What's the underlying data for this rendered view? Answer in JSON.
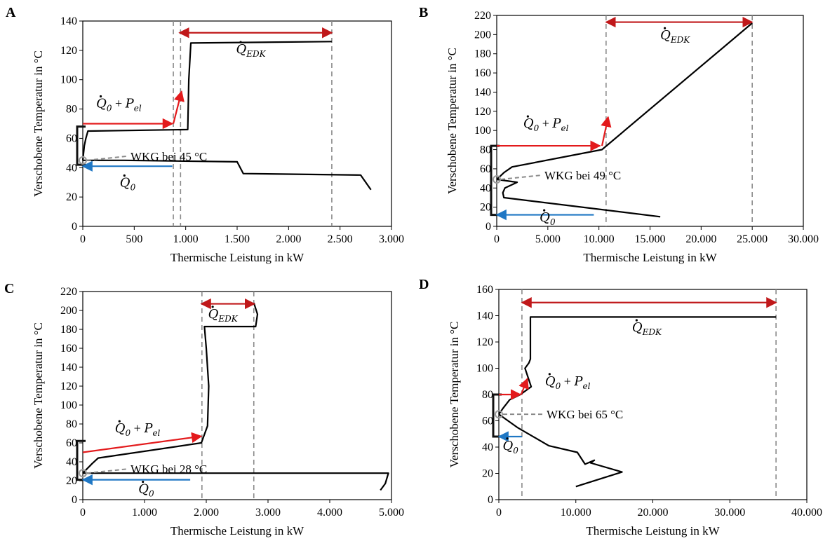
{
  "figure": {
    "colors": {
      "curve": "#000000",
      "red": "#e31a1c",
      "blue": "#1f77c4",
      "dash": "#8a8a8a",
      "marker": "#9a9a9a"
    }
  },
  "chart_data": [
    {
      "id": "A",
      "panel_label": "A",
      "type": "line",
      "xlabel": "Thermische Leistung in kW",
      "ylabel": "Verschobene Temperatur in °C",
      "xlim": [
        0,
        3000
      ],
      "ylim": [
        0,
        140
      ],
      "xticks": [
        0,
        500,
        1000,
        1500,
        2000,
        2500,
        3000
      ],
      "xtick_labels": [
        "0",
        "500",
        "1.000",
        "1.500",
        "2.000",
        "2.500",
        "3.000"
      ],
      "yticks": [
        0,
        20,
        40,
        60,
        80,
        100,
        120,
        140
      ],
      "ytick_labels": [
        "0",
        "20",
        "40",
        "60",
        "80",
        "100",
        "120",
        "140"
      ],
      "grid": false,
      "series": [
        {
          "x": [
            0,
            15,
            30,
            50,
            1020,
            1030,
            1050,
            2420
          ],
          "y": [
            45,
            55,
            60,
            65,
            66,
            100,
            125,
            126
          ]
        },
        {
          "x": [
            0,
            400,
            1500,
            1560,
            2700,
            2800
          ],
          "y": [
            45,
            45,
            44,
            36,
            35,
            25
          ]
        }
      ],
      "verticals": [
        880,
        950,
        2420
      ],
      "pinch": {
        "x": 0,
        "y": 45
      },
      "pinch_label": "WKG bei 45 °C",
      "bracket": {
        "y0": 42,
        "y1": 68
      },
      "arrows": [
        {
          "color": "red",
          "x1": 0,
          "y1": 70,
          "x2": 870,
          "y2": 70
        },
        {
          "color": "red",
          "x1": 880,
          "y1": 70,
          "x2": 960,
          "y2": 92
        },
        {
          "color": "red",
          "x1": 940,
          "y1": 132,
          "x2": 2420,
          "y2": 132
        },
        {
          "color": "blue",
          "x1": 870,
          "y1": 41,
          "x2": 0,
          "y2": 41
        }
      ],
      "labels": [
        {
          "main": "Q",
          "sub": "EDK",
          "x": 1490,
          "y": 118
        },
        {
          "main": "Q",
          "sub": "0",
          "extra": "P",
          "extra_sub": "el",
          "x": 130,
          "y": 81
        },
        {
          "main": "Q",
          "sub": "0",
          "x": 360,
          "y": 27
        }
      ]
    },
    {
      "id": "B",
      "panel_label": "B",
      "type": "line",
      "xlabel": "Thermische Leistung in kW",
      "ylabel": "Verschobene Temperatur in °C",
      "xlim": [
        0,
        30000
      ],
      "ylim": [
        0,
        220
      ],
      "xticks": [
        0,
        5000,
        10000,
        15000,
        20000,
        25000,
        30000
      ],
      "xtick_labels": [
        "0",
        "5.000",
        "10.000",
        "15.000",
        "20.000",
        "25.000",
        "30.000"
      ],
      "yticks": [
        0,
        20,
        40,
        60,
        80,
        100,
        120,
        140,
        160,
        180,
        200,
        220
      ],
      "ytick_labels": [
        "0",
        "20",
        "40",
        "60",
        "80",
        "100",
        "120",
        "140",
        "160",
        "180",
        "200",
        "220"
      ],
      "grid": false,
      "series": [
        {
          "x": [
            0,
            300,
            700,
            1500,
            10300,
            25000
          ],
          "y": [
            49,
            52,
            56,
            62,
            80,
            212
          ]
        },
        {
          "x": [
            0,
            2000,
            800,
            600,
            700,
            16000
          ],
          "y": [
            49,
            46,
            40,
            35,
            30,
            10
          ]
        }
      ],
      "verticals": [
        10700,
        25000
      ],
      "pinch": {
        "x": 0,
        "y": 49
      },
      "pinch_label": "WKG bei 49 °C",
      "bracket": {
        "y0": 12,
        "y1": 84
      },
      "arrows": [
        {
          "color": "red",
          "x1": 0,
          "y1": 84,
          "x2": 10100,
          "y2": 84
        },
        {
          "color": "red",
          "x1": 10300,
          "y1": 84,
          "x2": 10900,
          "y2": 114
        },
        {
          "color": "red",
          "x1": 10700,
          "y1": 213,
          "x2": 25000,
          "y2": 213
        },
        {
          "color": "blue",
          "x1": 9500,
          "y1": 12,
          "x2": 0,
          "y2": 12
        }
      ],
      "labels": [
        {
          "main": "Q",
          "sub": "EDK",
          "x": 16000,
          "y": 195
        },
        {
          "main": "Q",
          "sub": "0",
          "extra": "P",
          "extra_sub": "el",
          "x": 2600,
          "y": 103
        },
        {
          "main": "Q",
          "sub": "0",
          "x": 4200,
          "y": 5
        }
      ]
    },
    {
      "id": "C",
      "panel_label": "C",
      "type": "line",
      "xlabel": "Thermische Leistung in kW",
      "ylabel": "Verschobene Temperatur in °C",
      "xlim": [
        0,
        5000
      ],
      "ylim": [
        0,
        220
      ],
      "xticks": [
        0,
        1000,
        2000,
        3000,
        4000,
        5000
      ],
      "xtick_labels": [
        "0",
        "1.000",
        "2.000",
        "3.000",
        "4.000",
        "5.000"
      ],
      "yticks": [
        0,
        20,
        40,
        60,
        80,
        100,
        120,
        140,
        160,
        180,
        200,
        220
      ],
      "ytick_labels": [
        "0",
        "20",
        "40",
        "60",
        "80",
        "100",
        "120",
        "140",
        "160",
        "180",
        "200",
        "220"
      ],
      "grid": false,
      "series": [
        {
          "x": [
            0,
            150,
            250,
            1920,
            2020,
            2040,
            2000,
            1970,
            2800,
            2830,
            2770
          ],
          "y": [
            28,
            38,
            44,
            60,
            78,
            120,
            160,
            183,
            183,
            196,
            208
          ]
        },
        {
          "x": [
            0,
            4950,
            4900,
            4820
          ],
          "y": [
            28,
            28,
            17,
            10
          ]
        }
      ],
      "verticals": [
        1930,
        2770
      ],
      "pinch": {
        "x": 0,
        "y": 28
      },
      "pinch_label": "WKG bei 28 °C",
      "bracket": {
        "y0": 21,
        "y1": 62
      },
      "arrows": [
        {
          "color": "red",
          "x1": 0,
          "y1": 50,
          "x2": 1920,
          "y2": 67
        },
        {
          "color": "red",
          "x1": 1920,
          "y1": 207,
          "x2": 2780,
          "y2": 207
        },
        {
          "color": "blue",
          "x1": 1740,
          "y1": 21,
          "x2": 0,
          "y2": 21
        }
      ],
      "labels": [
        {
          "main": "Q",
          "sub": "EDK",
          "x": 2030,
          "y": 192
        },
        {
          "main": "Q",
          "sub": "0",
          "extra": "P",
          "extra_sub": "el",
          "x": 520,
          "y": 71
        },
        {
          "main": "Q",
          "sub": "0",
          "x": 900,
          "y": 7
        }
      ]
    },
    {
      "id": "D",
      "panel_label": "D",
      "type": "line",
      "xlabel": "Thermische Leistung in kW",
      "ylabel": "Verschobene Temperatur in °C",
      "xlim": [
        0,
        40000
      ],
      "ylim": [
        0,
        160
      ],
      "xticks": [
        0,
        10000,
        20000,
        30000,
        40000
      ],
      "xtick_labels": [
        "0",
        "10.000",
        "20.000",
        "30.000",
        "40.000"
      ],
      "yticks": [
        0,
        20,
        40,
        60,
        80,
        100,
        120,
        140,
        160
      ],
      "ytick_labels": [
        "0",
        "20",
        "40",
        "60",
        "80",
        "100",
        "120",
        "140",
        "160"
      ],
      "grid": false,
      "series": [
        {
          "x": [
            0,
            600,
            1400,
            2800,
            4200,
            3400,
            3900,
            4100,
            4100,
            36000
          ],
          "y": [
            65,
            70,
            76,
            80,
            86,
            100,
            104,
            107,
            139,
            139
          ]
        },
        {
          "x": [
            0,
            2400,
            6500,
            10200,
            11200,
            12400,
            11900,
            16000,
            10000
          ],
          "y": [
            65,
            55,
            41,
            36,
            27,
            30,
            28,
            21,
            10
          ]
        }
      ],
      "verticals": [
        3000,
        36000
      ],
      "pinch": {
        "x": 0,
        "y": 65
      },
      "pinch_label": "WKG bei 65 °C",
      "bracket": {
        "y0": 48,
        "y1": 80
      },
      "arrows": [
        {
          "color": "red",
          "x1": 0,
          "y1": 80,
          "x2": 2800,
          "y2": 80
        },
        {
          "color": "red",
          "x1": 2900,
          "y1": 80,
          "x2": 3700,
          "y2": 92
        },
        {
          "color": "red",
          "x1": 3000,
          "y1": 150,
          "x2": 36000,
          "y2": 150
        },
        {
          "color": "blue",
          "x1": 3000,
          "y1": 48,
          "x2": 0,
          "y2": 48
        }
      ],
      "labels": [
        {
          "main": "Q",
          "sub": "EDK",
          "x": 17300,
          "y": 128
        },
        {
          "main": "Q",
          "sub": "0",
          "extra": "P",
          "extra_sub": "el",
          "x": 6000,
          "y": 87
        },
        {
          "main": "Q",
          "sub": "0",
          "x": 500,
          "y": 38
        }
      ]
    }
  ]
}
